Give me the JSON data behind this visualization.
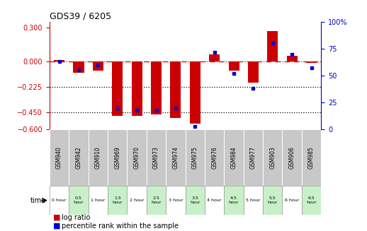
{
  "title": "GDS39 / 6205",
  "samples": [
    "GSM940",
    "GSM942",
    "GSM910",
    "GSM969",
    "GSM970",
    "GSM973",
    "GSM974",
    "GSM975",
    "GSM976",
    "GSM984",
    "GSM977",
    "GSM903",
    "GSM906",
    "GSM985"
  ],
  "time_labels": [
    "0 hour",
    "0.5\nhour",
    "1 hour",
    "1.5\nhour",
    "2 hour",
    "2.5\nhour",
    "3 hour",
    "3.5\nhour",
    "4 hour",
    "4.5\nhour",
    "5 hour",
    "5.5\nhour",
    "6 hour",
    "6.5\nhour"
  ],
  "log_ratio": [
    0.01,
    -0.1,
    -0.08,
    -0.48,
    -0.48,
    -0.465,
    -0.5,
    -0.55,
    0.06,
    -0.08,
    -0.19,
    0.27,
    0.05,
    -0.01
  ],
  "percentile": [
    63,
    55,
    60,
    20,
    18,
    18,
    20,
    3,
    72,
    52,
    38,
    80,
    70,
    57
  ],
  "ylim_left": [
    -0.6,
    0.35
  ],
  "yticks_left": [
    0.3,
    0.0,
    -0.225,
    -0.45,
    -0.6
  ],
  "yticks_right": [
    100,
    75,
    50,
    25,
    0
  ],
  "bar_color": "#cc0000",
  "dot_color": "#0000cc",
  "bg_color": "#ffffff",
  "gsm_bg": "#c8c8c8",
  "time_colors": [
    "#ffffff",
    "#c8f0c8",
    "#ffffff",
    "#c8f0c8",
    "#ffffff",
    "#c8f0c8",
    "#ffffff",
    "#c8f0c8",
    "#ffffff",
    "#c8f0c8",
    "#ffffff",
    "#c8f0c8",
    "#ffffff",
    "#c8f0c8"
  ],
  "legend_log": "log ratio",
  "legend_pct": "percentile rank within the sample"
}
